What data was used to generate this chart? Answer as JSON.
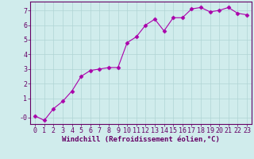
{
  "x": [
    0,
    1,
    2,
    3,
    4,
    5,
    6,
    7,
    8,
    9,
    10,
    11,
    12,
    13,
    14,
    15,
    16,
    17,
    18,
    19,
    20,
    21,
    22,
    23
  ],
  "y": [
    -0.2,
    -0.5,
    0.3,
    0.8,
    1.5,
    2.5,
    2.9,
    3.0,
    3.1,
    3.1,
    4.8,
    5.2,
    6.0,
    6.4,
    5.6,
    6.5,
    6.5,
    7.1,
    7.2,
    6.9,
    7.0,
    7.2,
    6.8,
    6.7
  ],
  "xlabel": "Windchill (Refroidissement éolien,°C)",
  "ylabel_ticks": [
    "-0",
    "1",
    "2",
    "3",
    "4",
    "5",
    "6",
    "7"
  ],
  "yticks": [
    -0.3,
    1,
    2,
    3,
    4,
    5,
    6,
    7
  ],
  "ylim": [
    -0.75,
    7.6
  ],
  "xlim": [
    -0.5,
    23.5
  ],
  "line_color": "#aa00aa",
  "marker_color": "#aa00aa",
  "bg_color": "#d0ecec",
  "grid_color": "#b0d4d4",
  "axis_label_color": "#660066",
  "tick_label_color": "#660066",
  "xlabel_fontsize": 6.5,
  "tick_fontsize": 6
}
